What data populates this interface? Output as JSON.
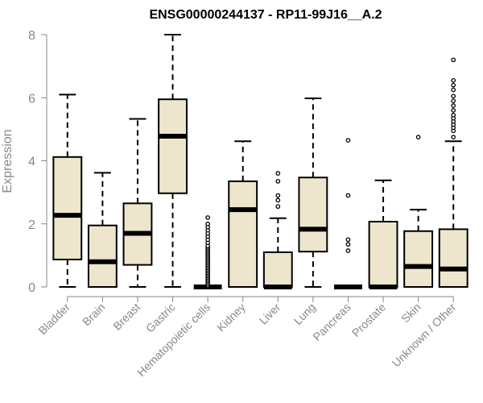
{
  "chart_data": {
    "type": "box",
    "title": "ENSG00000244137 - RP11-99J16__A.2",
    "ylabel": "Expression",
    "xlabel": "",
    "ylim": [
      0,
      8
    ],
    "yticks": [
      0,
      2,
      4,
      6,
      8
    ],
    "categories": [
      "Bladder",
      "Brain",
      "Breast",
      "Gastric",
      "Hematopoietic cells",
      "Kidney",
      "Liver",
      "Lung",
      "Pancreas",
      "Prostate",
      "Skin",
      "Unknown / Other"
    ],
    "boxes": [
      {
        "whisker_low": 0,
        "q1": 0.87,
        "median": 2.27,
        "q3": 4.12,
        "whisker_high": 6.1,
        "outliers": []
      },
      {
        "whisker_low": 0,
        "q1": 0,
        "median": 0.8,
        "q3": 1.95,
        "whisker_high": 3.62,
        "outliers": []
      },
      {
        "whisker_low": 0,
        "q1": 0.7,
        "median": 1.7,
        "q3": 2.65,
        "whisker_high": 5.33,
        "outliers": []
      },
      {
        "whisker_low": 0,
        "q1": 2.97,
        "median": 4.78,
        "q3": 5.95,
        "whisker_high": 8.0,
        "outliers": []
      },
      {
        "whisker_low": 0,
        "q1": 0,
        "median": 0,
        "q3": 0,
        "whisker_high": 0,
        "outliers": [
          0.05,
          0.1,
          0.15,
          0.2,
          0.25,
          0.3,
          0.35,
          0.4,
          0.45,
          0.5,
          0.55,
          0.6,
          0.65,
          0.7,
          0.75,
          0.8,
          0.85,
          0.9,
          0.95,
          1.0,
          1.05,
          1.1,
          1.15,
          1.2,
          1.25,
          1.3,
          1.4,
          1.5,
          1.6,
          1.7,
          1.8,
          1.9,
          2.0,
          2.2
        ]
      },
      {
        "whisker_low": 0,
        "q1": 0,
        "median": 2.45,
        "q3": 3.35,
        "whisker_high": 4.62,
        "outliers": []
      },
      {
        "whisker_low": 0,
        "q1": 0,
        "median": 0,
        "q3": 1.1,
        "whisker_high": 2.18,
        "outliers": [
          2.55,
          2.75,
          2.9,
          3.35,
          3.6
        ]
      },
      {
        "whisker_low": 0,
        "q1": 1.12,
        "median": 1.83,
        "q3": 3.47,
        "whisker_high": 5.98,
        "outliers": []
      },
      {
        "whisker_low": 0,
        "q1": 0,
        "median": 0,
        "q3": 0,
        "whisker_high": 0,
        "outliers": [
          1.15,
          1.35,
          1.5,
          2.9,
          4.65
        ]
      },
      {
        "whisker_low": 0,
        "q1": 0,
        "median": 0,
        "q3": 2.07,
        "whisker_high": 3.38,
        "outliers": []
      },
      {
        "whisker_low": 0,
        "q1": 0,
        "median": 0.65,
        "q3": 1.77,
        "whisker_high": 2.45,
        "outliers": [
          4.75
        ]
      },
      {
        "whisker_low": 0,
        "q1": 0,
        "median": 0.57,
        "q3": 1.83,
        "whisker_high": 4.62,
        "outliers": [
          4.75,
          4.95,
          5.05,
          5.15,
          5.25,
          5.35,
          5.45,
          5.6,
          5.75,
          5.9,
          6.05,
          6.25,
          6.4,
          6.55,
          7.2
        ]
      }
    ],
    "box_fill": "#EDE6CC",
    "box_stroke": "#000000",
    "grid": false,
    "legend": "none"
  }
}
